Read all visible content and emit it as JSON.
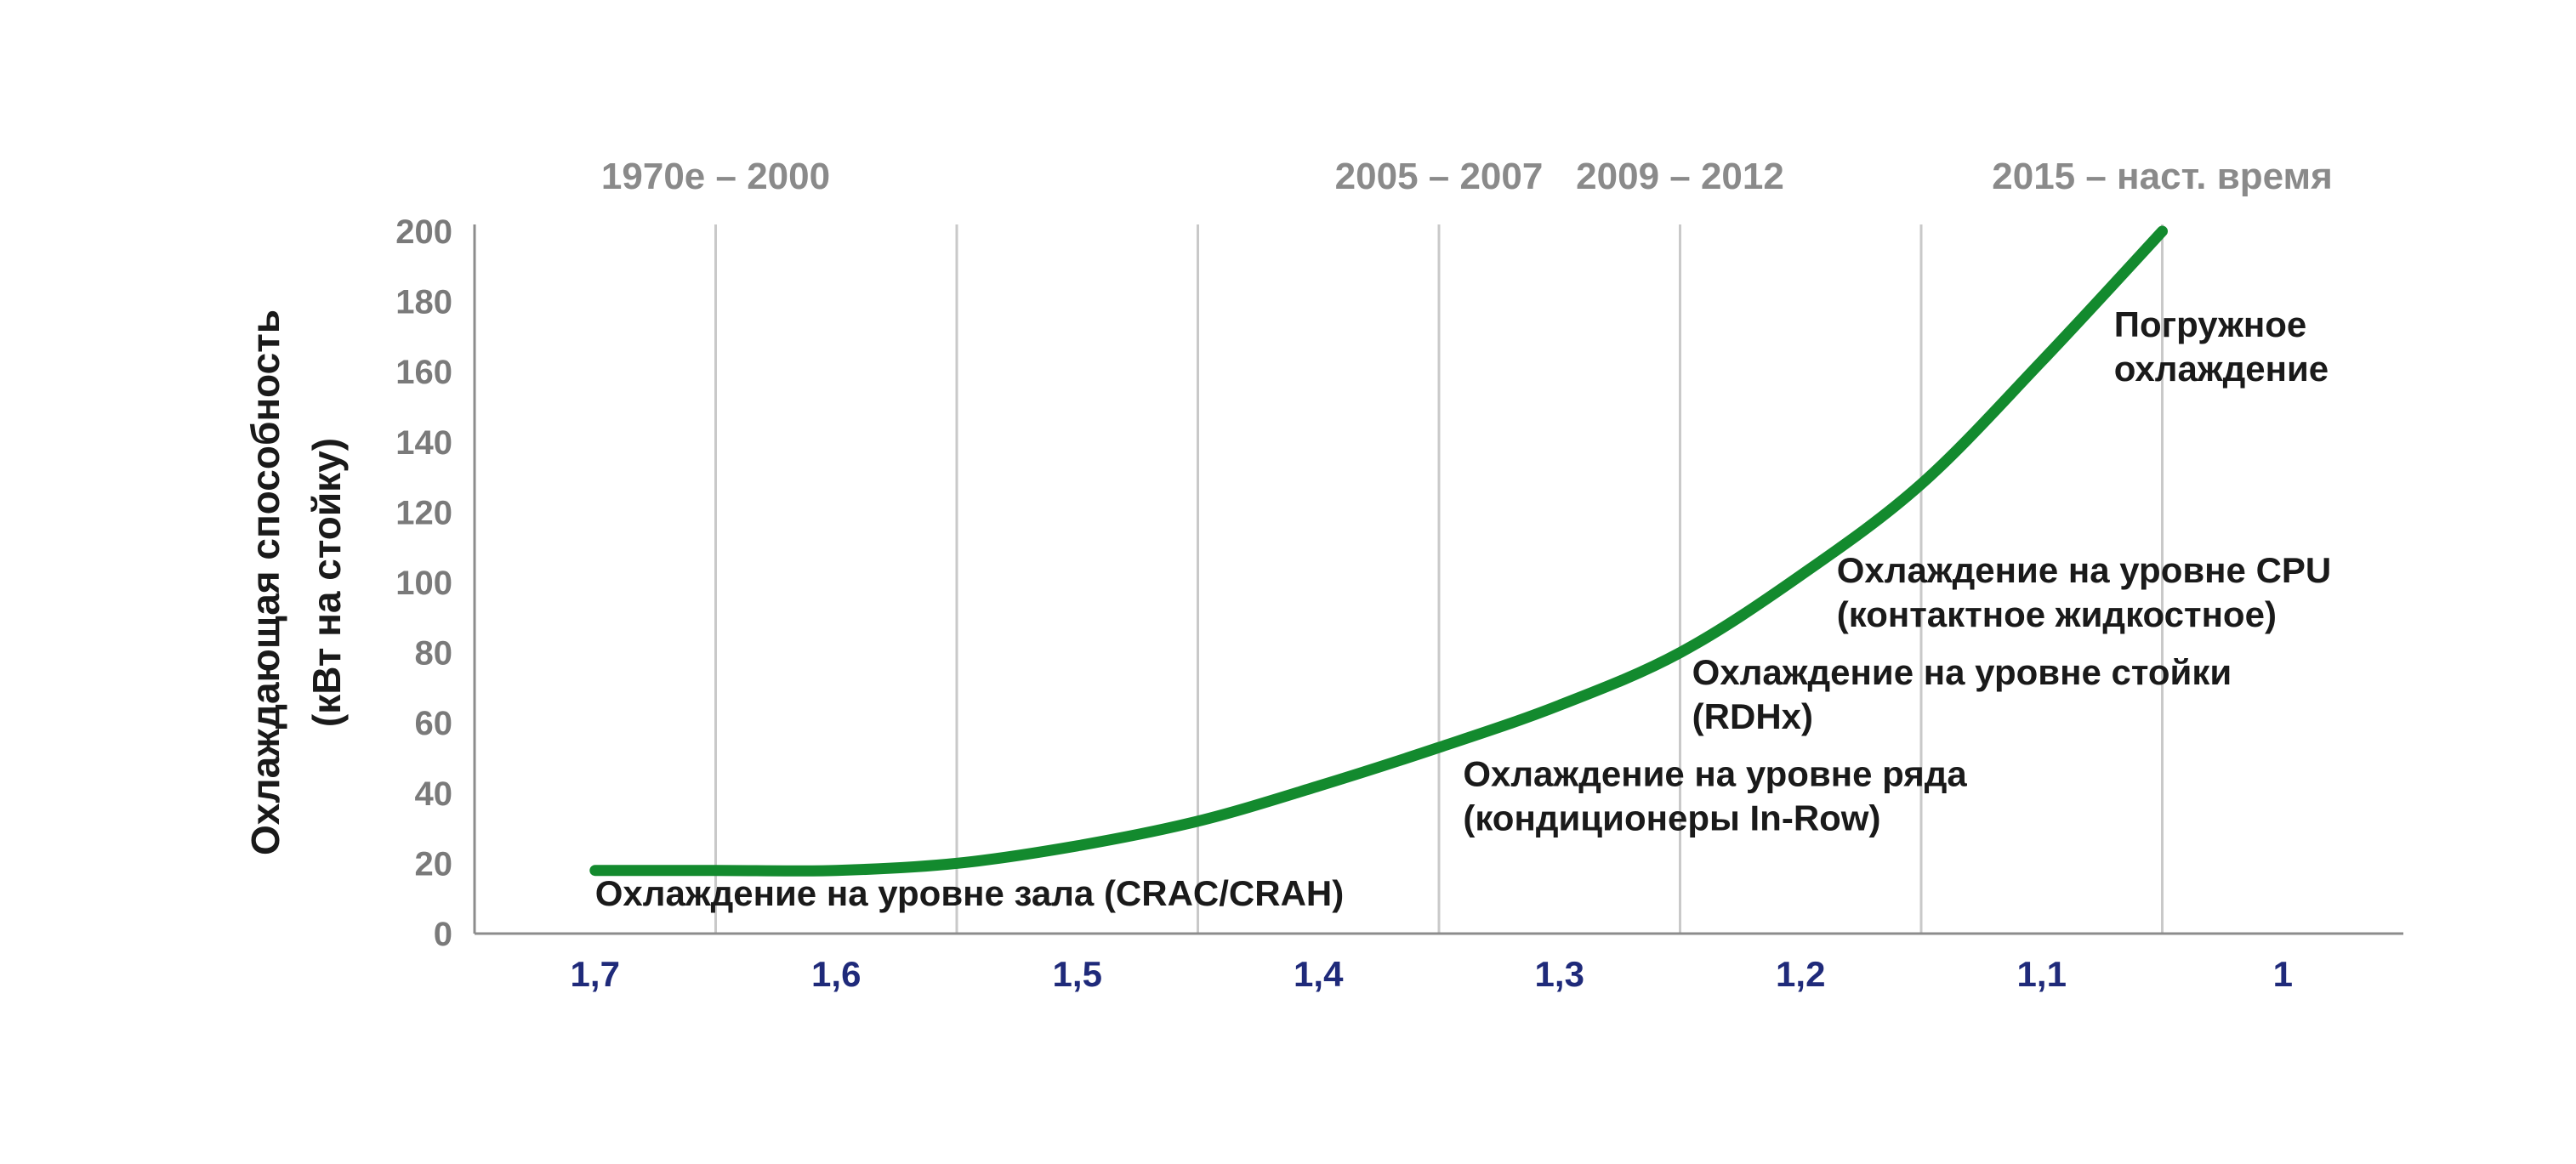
{
  "chart_data": {
    "type": "line",
    "title": "",
    "ylabel_lines": [
      "Охлаждающая способность",
      "(кВт на стойку)"
    ],
    "xlabel": "",
    "x_ticks": [
      "1,7",
      "1,6",
      "1,5",
      "1,4",
      "1,3",
      "1,2",
      "1,1",
      "1"
    ],
    "x_range": [
      1.75,
      0.95
    ],
    "x_reversed": true,
    "y_ticks": [
      "0",
      "20",
      "40",
      "60",
      "80",
      "100",
      "120",
      "140",
      "160",
      "180",
      "200"
    ],
    "ylim": [
      0,
      200
    ],
    "grid": "vertical",
    "eras": [
      {
        "label": "1970е – 2000",
        "x": 1.65
      },
      {
        "label": "2005 – 2007",
        "x": 1.35
      },
      {
        "label": "2009 – 2012",
        "x": 1.25
      },
      {
        "label": "2015 – наст. время",
        "x": 1.05
      }
    ],
    "series": [
      {
        "color": "#138a2e",
        "x": [
          1.7,
          1.65,
          1.6,
          1.55,
          1.5,
          1.45,
          1.4,
          1.35,
          1.3,
          1.25,
          1.2,
          1.15,
          1.1,
          1.05
        ],
        "y": [
          18,
          18,
          18,
          20,
          25,
          32,
          42,
          53,
          65,
          80,
          102,
          128,
          163,
          200
        ]
      }
    ],
    "annotations": [
      {
        "lines": [
          "Охлаждение на уровне зала (CRAC/CRAH)"
        ],
        "x": 1.7,
        "y": 8
      },
      {
        "lines": [
          "Охлаждение на уровне ряда",
          "(кондиционеры In-Row)"
        ],
        "x": 1.34,
        "y": 42
      },
      {
        "lines": [
          "Охлаждение на уровне стойки",
          "(RDHx)"
        ],
        "x": 1.245,
        "y": 71
      },
      {
        "lines": [
          "Охлаждение на уровне CPU",
          "(контактное жидкостное)"
        ],
        "x": 1.185,
        "y": 100
      },
      {
        "lines": [
          "Погружное",
          "охлаждение"
        ],
        "x": 1.07,
        "y": 170
      }
    ]
  }
}
